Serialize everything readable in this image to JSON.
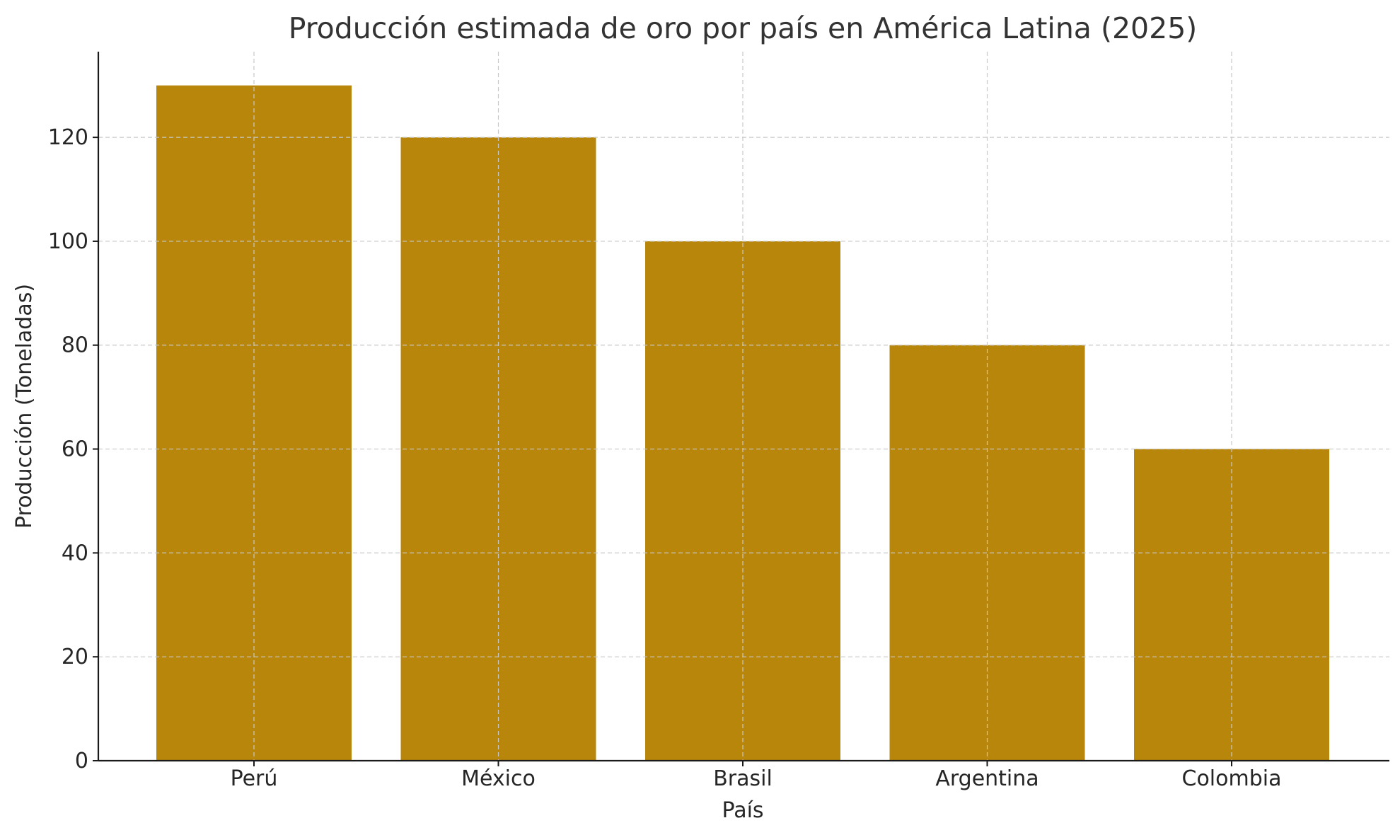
{
  "chart_data": {
    "type": "bar",
    "title": "Producción estimada de oro por país en América Latina (2025)",
    "xlabel": "País",
    "ylabel": "Producción (Toneladas)",
    "categories": [
      "Perú",
      "México",
      "Brasil",
      "Argentina",
      "Colombia"
    ],
    "values": [
      130,
      120,
      100,
      80,
      60
    ],
    "ylim": [
      0,
      136.5
    ],
    "yticks": [
      0,
      20,
      40,
      60,
      80,
      100,
      120
    ],
    "grid": true,
    "bar_color": "#b8860b"
  }
}
